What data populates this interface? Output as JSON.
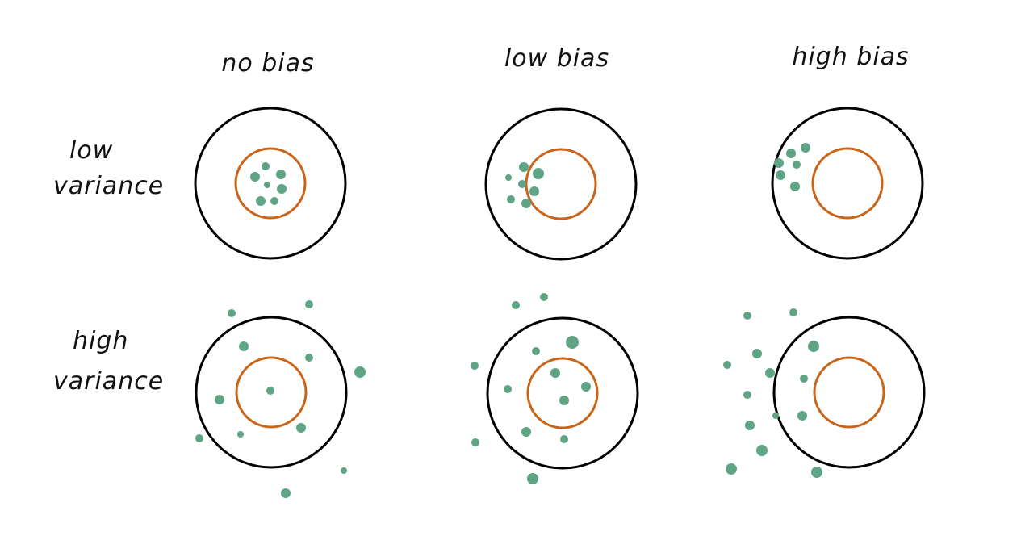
{
  "column_labels": [
    "no bias",
    "low bias",
    "high bias"
  ],
  "row_labels": [
    {
      "line1": "low",
      "line2": "variance"
    },
    {
      "line1": "high",
      "line2": "variance"
    }
  ],
  "colors": {
    "outer_ring": "#000000",
    "inner_ring": "#c9651b",
    "dots": "#5fa585"
  },
  "targets": [
    {
      "id": "r0c0",
      "row": 0,
      "col": 0
    },
    {
      "id": "r0c1",
      "row": 0,
      "col": 1
    },
    {
      "id": "r0c2",
      "row": 0,
      "col": 2
    },
    {
      "id": "r1c0",
      "row": 1,
      "col": 0
    },
    {
      "id": "r1c1",
      "row": 1,
      "col": 1
    },
    {
      "id": "r1c2",
      "row": 1,
      "col": 2
    }
  ]
}
